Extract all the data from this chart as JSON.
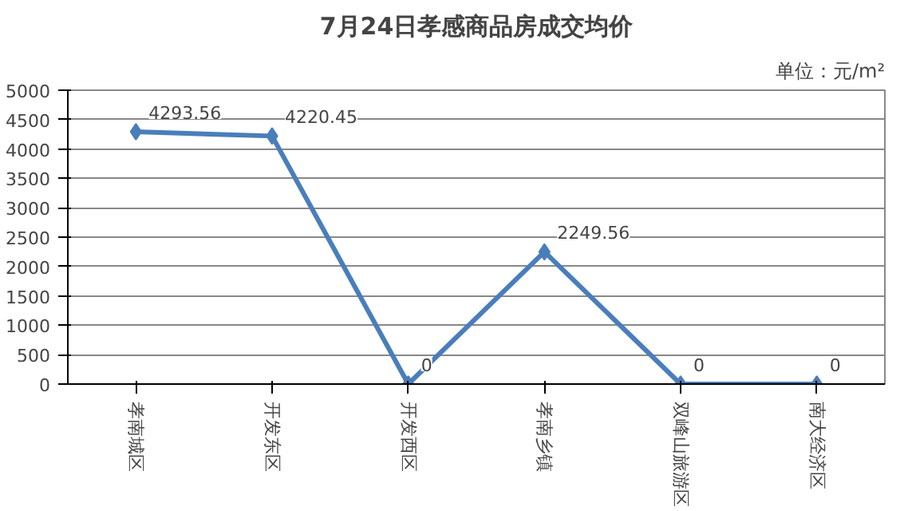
{
  "chart_data": {
    "type": "line",
    "title": "7月24日孝感商品房成交均价",
    "annotations": [
      "单位：元/m²"
    ],
    "categories": [
      "孝南城区",
      "开发东区",
      "开发西区",
      "孝南乡镇",
      "双峰山旅游区",
      "南大经济区"
    ],
    "series": [
      {
        "color": "#4a7ebb",
        "values": [
          4293.56,
          4220.45,
          0,
          2249.56,
          0,
          0
        ]
      }
    ],
    "ylim": [
      0,
      5000
    ],
    "yticks": [
      0,
      500,
      1000,
      1500,
      2000,
      2500,
      3000,
      3500,
      4000,
      4500,
      5000
    ],
    "grid": "y",
    "marker": "diamond",
    "line_style": "solid",
    "data_labels": true
  }
}
